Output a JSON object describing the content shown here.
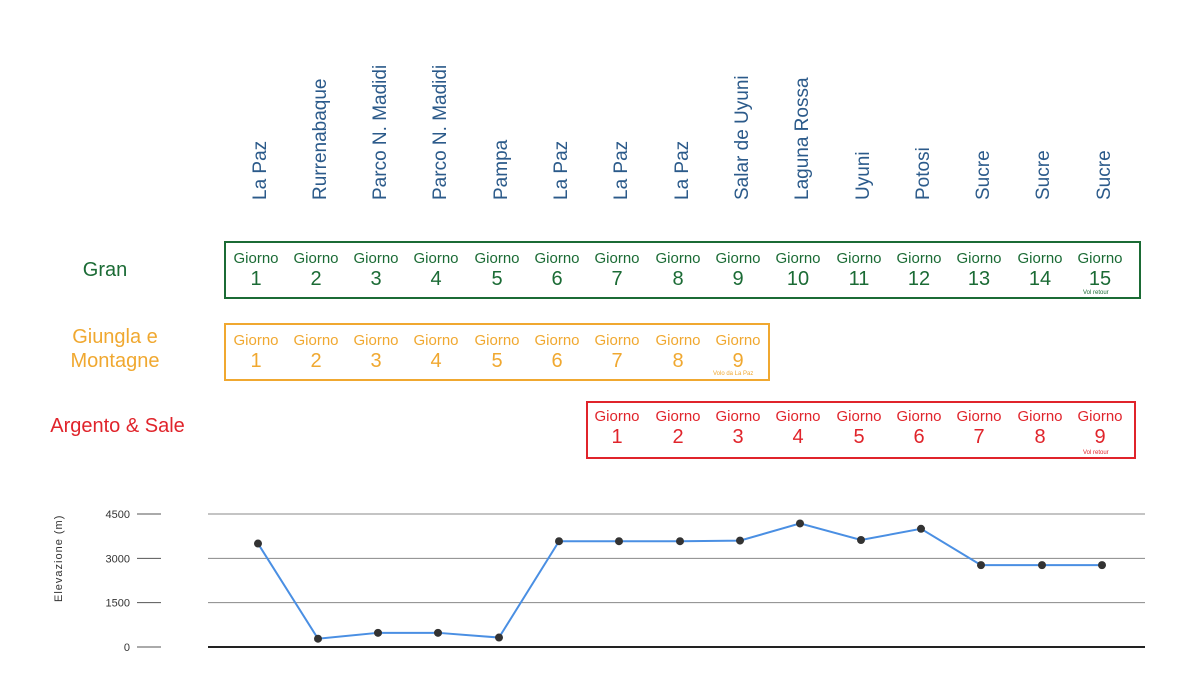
{
  "places": [
    "La Paz",
    "Rurrenabaque",
    "Parco N. Madidi",
    "Parco N. Madidi",
    "Pampa",
    "La Paz",
    "La Paz",
    "La Paz",
    "Salar de Uyuni",
    "Laguna Rossa",
    "Uyuni",
    "Potosi",
    "Sucre",
    "Sucre",
    "Sucre"
  ],
  "day_word": "Giorno",
  "plans": [
    {
      "name": "Gran",
      "color": "#1b6b35",
      "days": [
        "1",
        "2",
        "3",
        "4",
        "5",
        "6",
        "7",
        "8",
        "9",
        "10",
        "11",
        "12",
        "13",
        "14",
        "15"
      ],
      "note": "Vol retour"
    },
    {
      "name_line1": "Giungla e",
      "name_line2": "Montagne",
      "color": "#f0a830",
      "days": [
        "1",
        "2",
        "3",
        "4",
        "5",
        "6",
        "7",
        "8",
        "9"
      ],
      "note": "Volo da La Paz"
    },
    {
      "name": "Argento & Sale",
      "color": "#e0242b",
      "days": [
        "1",
        "2",
        "3",
        "4",
        "5",
        "6",
        "7",
        "8",
        "9"
      ],
      "note": "Vol retour"
    }
  ],
  "chart_data": {
    "type": "line",
    "ylabel": "Elevazione (m)",
    "yticks": [
      0,
      1500,
      3000,
      4500
    ],
    "ylim": [
      0,
      4500
    ],
    "grid": true,
    "line_color": "#4a8fe3",
    "point_color": "#333333",
    "categories": [
      "La Paz",
      "Rurrenabaque",
      "Parco N. Madidi",
      "Parco N. Madidi",
      "Pampa",
      "La Paz",
      "La Paz",
      "La Paz",
      "Salar de Uyuni",
      "Laguna Rossa",
      "Uyuni",
      "Potosi",
      "Sucre",
      "Sucre",
      "Sucre"
    ],
    "values": [
      3500,
      280,
      480,
      480,
      320,
      3580,
      3580,
      3580,
      3600,
      4180,
      3620,
      4000,
      2770,
      2770,
      2770
    ]
  }
}
